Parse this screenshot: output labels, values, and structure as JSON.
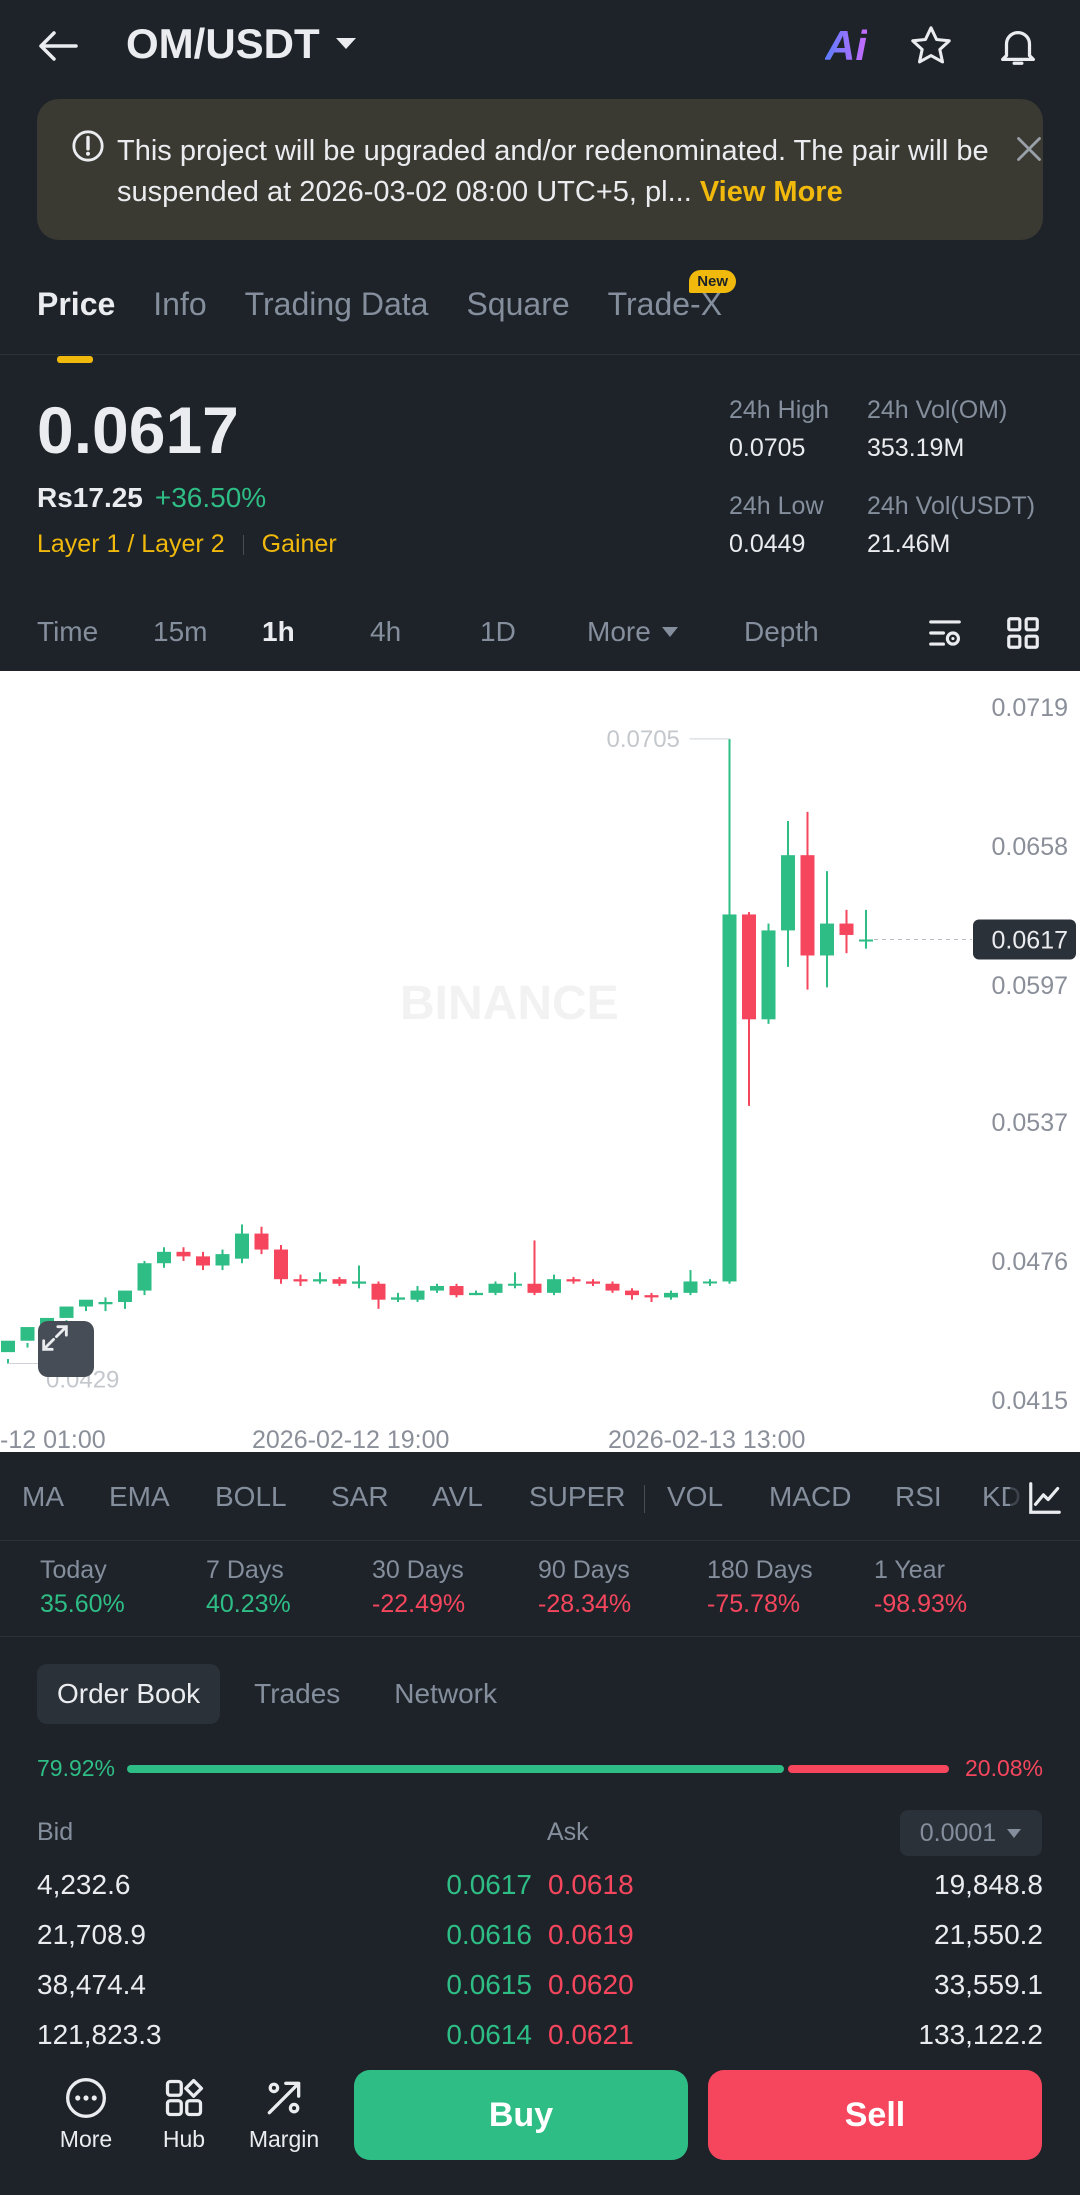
{
  "header": {
    "pair": "OM/USDT",
    "ai_label": "Ai"
  },
  "notice": {
    "text": "This project will be upgraded and/or redenominated. The pair will be suspended at 2026-03-02 08:00 UTC+5, pl...",
    "more": "View More"
  },
  "tabs": [
    {
      "label": "Price",
      "active": true
    },
    {
      "label": "Info"
    },
    {
      "label": "Trading Data"
    },
    {
      "label": "Square"
    },
    {
      "label": "Trade-X",
      "badge": "New"
    }
  ],
  "price": {
    "last": "0.0617",
    "fiat": "Rs17.25",
    "change": "+36.50%",
    "tags": [
      "Layer 1 / Layer 2",
      "Gainer"
    ],
    "stats": {
      "high_label": "24h High",
      "high": "0.0705",
      "vol_om_label": "24h Vol(OM)",
      "vol_om": "353.19M",
      "low_label": "24h Low",
      "low": "0.0449",
      "vol_usdt_label": "24h Vol(USDT)",
      "vol_usdt": "21.46M"
    }
  },
  "timeframes": {
    "time": "Time",
    "m15": "15m",
    "h1": "1h",
    "h4": "4h",
    "d1": "1D",
    "more": "More",
    "depth": "Depth"
  },
  "chart_data": {
    "type": "candlestick",
    "ylim": [
      0.0415,
      0.0719
    ],
    "y_ticks": [
      "0.0719",
      "0.0658",
      "0.0597",
      "0.0537",
      "0.0476",
      "0.0415"
    ],
    "x_ticks": [
      "-12 01:00",
      "2026-02-12 19:00",
      "2026-02-13 13:00"
    ],
    "high_marker": "0.0705",
    "low_marker": "0.0429",
    "last_price_label": "0.0617",
    "watermark": "BINANCE",
    "candles": [
      [
        0.0436,
        0.0441,
        0.0433,
        0.0431
      ],
      [
        0.0441,
        0.0447,
        0.044,
        0.0438
      ],
      [
        0.0447,
        0.0451,
        0.0449,
        0.0445
      ],
      [
        0.0451,
        0.0456,
        0.045,
        0.0448
      ],
      [
        0.0456,
        0.0459,
        0.0457,
        0.0454
      ],
      [
        0.0457,
        0.0458,
        0.046,
        0.0454
      ],
      [
        0.0458,
        0.0463,
        0.0462,
        0.0455
      ],
      [
        0.0463,
        0.0475,
        0.0476,
        0.0461
      ],
      [
        0.0475,
        0.048,
        0.0482,
        0.0473
      ],
      [
        0.048,
        0.0478,
        0.0482,
        0.0476
      ],
      [
        0.0478,
        0.0474,
        0.048,
        0.0472
      ],
      [
        0.0474,
        0.0479,
        0.0481,
        0.0472
      ],
      [
        0.0477,
        0.0488,
        0.0492,
        0.0475
      ],
      [
        0.0488,
        0.0481,
        0.0491,
        0.0479
      ],
      [
        0.0481,
        0.0468,
        0.0483,
        0.0466
      ],
      [
        0.0468,
        0.0467,
        0.047,
        0.0465
      ],
      [
        0.0467,
        0.0468,
        0.0471,
        0.0466
      ],
      [
        0.0468,
        0.0466,
        0.0469,
        0.0465
      ],
      [
        0.0466,
        0.0467,
        0.0474,
        0.0464
      ],
      [
        0.0466,
        0.0459,
        0.0467,
        0.0455
      ],
      [
        0.0459,
        0.046,
        0.0462,
        0.0458
      ],
      [
        0.0459,
        0.0463,
        0.0465,
        0.0458
      ],
      [
        0.0463,
        0.0465,
        0.0466,
        0.0462
      ],
      [
        0.0465,
        0.0461,
        0.0466,
        0.046
      ],
      [
        0.0461,
        0.0462,
        0.0463,
        0.0461
      ],
      [
        0.0462,
        0.0466,
        0.0467,
        0.0461
      ],
      [
        0.0466,
        0.0466,
        0.0471,
        0.0464
      ],
      [
        0.0466,
        0.0462,
        0.0485,
        0.0461
      ],
      [
        0.0462,
        0.0468,
        0.047,
        0.0461
      ],
      [
        0.0468,
        0.0467,
        0.0469,
        0.0466
      ],
      [
        0.0467,
        0.0466,
        0.0468,
        0.0465
      ],
      [
        0.0466,
        0.0463,
        0.0467,
        0.0462
      ],
      [
        0.0463,
        0.0461,
        0.0464,
        0.0459
      ],
      [
        0.0461,
        0.046,
        0.0462,
        0.0458
      ],
      [
        0.046,
        0.0462,
        0.0463,
        0.0459
      ],
      [
        0.0462,
        0.0467,
        0.0472,
        0.0461
      ],
      [
        0.0467,
        0.0467,
        0.0468,
        0.0465
      ],
      [
        0.0467,
        0.0628,
        0.0705,
        0.0466
      ],
      [
        0.0628,
        0.0582,
        0.0629,
        0.0544
      ],
      [
        0.0582,
        0.0621,
        0.0624,
        0.058
      ],
      [
        0.0621,
        0.0654,
        0.0669,
        0.0605
      ],
      [
        0.0654,
        0.061,
        0.0673,
        0.0595
      ],
      [
        0.061,
        0.0624,
        0.0647,
        0.0596
      ],
      [
        0.0624,
        0.0619,
        0.063,
        0.0611
      ],
      [
        0.0617,
        0.0617,
        0.063,
        0.0613
      ]
    ]
  },
  "indicators": [
    "MA",
    "EMA",
    "BOLL",
    "SAR",
    "AVL",
    "SUPER",
    "VOL",
    "MACD",
    "RSI",
    "KD"
  ],
  "performance": [
    {
      "label": "Today",
      "value": "35.60%",
      "dir": "up"
    },
    {
      "label": "7 Days",
      "value": "40.23%",
      "dir": "up"
    },
    {
      "label": "30 Days",
      "value": "-22.49%",
      "dir": "down"
    },
    {
      "label": "90 Days",
      "value": "-28.34%",
      "dir": "down"
    },
    {
      "label": "180 Days",
      "value": "-75.78%",
      "dir": "down"
    },
    {
      "label": "1 Year",
      "value": "-98.93%",
      "dir": "down"
    }
  ],
  "order_book": {
    "tabs": [
      "Order Book",
      "Trades",
      "Network"
    ],
    "bid_pct": "79.92%",
    "ask_pct": "20.08%",
    "bid_ratio": 0.7992,
    "bid_label": "Bid",
    "ask_label": "Ask",
    "tick": "0.0001",
    "rows": [
      {
        "bid_qty": "4,232.6",
        "bid_price": "0.0617",
        "ask_price": "0.0618",
        "ask_qty": "19,848.8"
      },
      {
        "bid_qty": "21,708.9",
        "bid_price": "0.0616",
        "ask_price": "0.0619",
        "ask_qty": "21,550.2"
      },
      {
        "bid_qty": "38,474.4",
        "bid_price": "0.0615",
        "ask_price": "0.0620",
        "ask_qty": "33,559.1"
      },
      {
        "bid_qty": "121,823.3",
        "bid_price": "0.0614",
        "ask_price": "0.0621",
        "ask_qty": "133,122.2"
      }
    ]
  },
  "bottom_nav": {
    "more": "More",
    "hub": "Hub",
    "margin": "Margin",
    "buy": "Buy",
    "sell": "Sell"
  },
  "colors": {
    "up": "#2ebd85",
    "down": "#f6465d",
    "accent": "#f0b90b"
  }
}
